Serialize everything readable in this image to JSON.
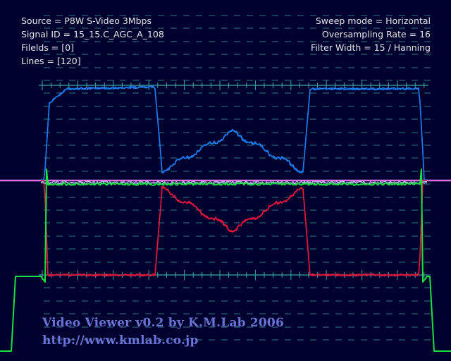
{
  "info": {
    "source": "Source = P8W S-Video 3Mbps",
    "signal_id": "Signal ID = 15_15.C_AGC_A_108",
    "fields": "Filelds = [0]",
    "lines": "Lines = [120]",
    "sweep_mode": "Sweep mode = Horizontal",
    "oversampling": "Oversampling Rate = 16",
    "filter": "Filter Width = 15 / Hanning"
  },
  "credits": {
    "title": "Video Viewer v0.2 by K.M.Lab 2006",
    "url": "http://www.kmlab.co.jp"
  },
  "colors": {
    "background": "#00002e",
    "graticule": "#3aa6a0",
    "reference_line": "#e070e0",
    "blue_trace": "#1a78e8",
    "red_trace": "#e0143c",
    "green_trace": "#18e040",
    "credit_text": "#6a74d6"
  }
}
